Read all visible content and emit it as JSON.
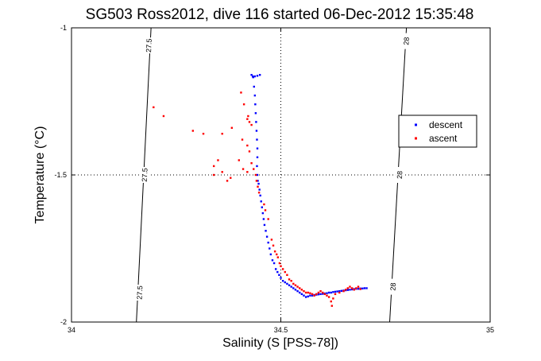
{
  "chart_data": {
    "type": "scatter",
    "title": "SG503 Ross2012, dive 116 started 06-Dec-2012 15:35:48",
    "xlabel": "Salinity (S [PSS-78])",
    "ylabel": "Temperature (°C)",
    "xlim": [
      34,
      35
    ],
    "ylim": [
      -2,
      -1
    ],
    "xticks": [
      {
        "value": 34,
        "label": "34"
      },
      {
        "value": 34.5,
        "label": "34.5"
      },
      {
        "value": 35,
        "label": "35"
      }
    ],
    "yticks": [
      {
        "value": -1,
        "label": "-1"
      },
      {
        "value": -1.5,
        "label": "-1.5"
      },
      {
        "value": -2,
        "label": "-2"
      }
    ],
    "grid": "dotted at 34.5 and -1.5",
    "legend_position": "right",
    "isopycnals": [
      {
        "label": "27.5",
        "points": [
          [
            34.19,
            -1.0
          ],
          [
            34.155,
            -2.0
          ]
        ],
        "label_positions": [
          [
            34.185,
            -1.06
          ],
          [
            34.175,
            -1.5
          ],
          [
            34.163,
            -1.9
          ]
        ]
      },
      {
        "label": "28",
        "points": [
          [
            34.8,
            -1.0
          ],
          [
            34.76,
            -2.0
          ]
        ],
        "label_positions": [
          [
            34.8,
            -1.045
          ],
          [
            34.784,
            -1.5
          ],
          [
            34.768,
            -1.88
          ]
        ]
      }
    ],
    "series": [
      {
        "name": "descent",
        "color": "#0000ff",
        "points": [
          [
            34.45,
            -1.16
          ],
          [
            34.444,
            -1.163
          ],
          [
            34.438,
            -1.165
          ],
          [
            34.433,
            -1.165
          ],
          [
            34.43,
            -1.16
          ],
          [
            34.434,
            -1.168
          ],
          [
            34.436,
            -1.2
          ],
          [
            34.438,
            -1.23
          ],
          [
            34.439,
            -1.26
          ],
          [
            34.44,
            -1.29
          ],
          [
            34.441,
            -1.32
          ],
          [
            34.442,
            -1.35
          ],
          [
            34.443,
            -1.38
          ],
          [
            34.444,
            -1.41
          ],
          [
            34.444,
            -1.44
          ],
          [
            34.443,
            -1.47
          ],
          [
            34.444,
            -1.5
          ],
          [
            34.445,
            -1.52
          ],
          [
            34.447,
            -1.53
          ],
          [
            34.449,
            -1.55
          ],
          [
            34.451,
            -1.57
          ],
          [
            34.453,
            -1.59
          ],
          [
            34.455,
            -1.61
          ],
          [
            34.457,
            -1.63
          ],
          [
            34.459,
            -1.65
          ],
          [
            34.461,
            -1.67
          ],
          [
            34.464,
            -1.69
          ],
          [
            34.467,
            -1.71
          ],
          [
            34.47,
            -1.73
          ],
          [
            34.473,
            -1.75
          ],
          [
            34.476,
            -1.77
          ],
          [
            34.48,
            -1.79
          ],
          [
            34.484,
            -1.8
          ],
          [
            34.488,
            -1.82
          ],
          [
            34.492,
            -1.83
          ],
          [
            34.496,
            -1.84
          ],
          [
            34.5,
            -1.85
          ],
          [
            34.505,
            -1.86
          ],
          [
            34.51,
            -1.865
          ],
          [
            34.515,
            -1.87
          ],
          [
            34.52,
            -1.875
          ],
          [
            34.525,
            -1.88
          ],
          [
            34.53,
            -1.885
          ],
          [
            34.535,
            -1.89
          ],
          [
            34.54,
            -1.895
          ],
          [
            34.545,
            -1.9
          ],
          [
            34.55,
            -1.905
          ],
          [
            34.555,
            -1.91
          ],
          [
            34.56,
            -1.915
          ],
          [
            34.565,
            -1.913
          ],
          [
            34.57,
            -1.91
          ],
          [
            34.575,
            -1.91
          ],
          [
            34.58,
            -1.908
          ],
          [
            34.585,
            -1.907
          ],
          [
            34.59,
            -1.906
          ],
          [
            34.595,
            -1.905
          ],
          [
            34.6,
            -1.904
          ],
          [
            34.605,
            -1.903
          ],
          [
            34.61,
            -1.902
          ],
          [
            34.615,
            -1.9
          ],
          [
            34.62,
            -1.9
          ],
          [
            34.625,
            -1.898
          ],
          [
            34.63,
            -1.897
          ],
          [
            34.635,
            -1.896
          ],
          [
            34.64,
            -1.895
          ],
          [
            34.645,
            -1.894
          ],
          [
            34.65,
            -1.893
          ],
          [
            34.655,
            -1.892
          ],
          [
            34.66,
            -1.891
          ],
          [
            34.665,
            -1.89
          ],
          [
            34.67,
            -1.889
          ],
          [
            34.675,
            -1.888
          ],
          [
            34.68,
            -1.887
          ],
          [
            34.685,
            -1.887
          ],
          [
            34.69,
            -1.886
          ],
          [
            34.695,
            -1.886
          ],
          [
            34.7,
            -1.885
          ],
          [
            34.705,
            -1.885
          ]
        ]
      },
      {
        "name": "ascent",
        "color": "#ff0000",
        "points": [
          [
            34.196,
            -1.27
          ],
          [
            34.22,
            -1.3
          ],
          [
            34.29,
            -1.35
          ],
          [
            34.315,
            -1.36
          ],
          [
            34.36,
            -1.36
          ],
          [
            34.383,
            -1.34
          ],
          [
            34.405,
            -1.22
          ],
          [
            34.412,
            -1.26
          ],
          [
            34.422,
            -1.3
          ],
          [
            34.42,
            -1.31
          ],
          [
            34.425,
            -1.32
          ],
          [
            34.43,
            -1.33
          ],
          [
            34.408,
            -1.38
          ],
          [
            34.42,
            -1.4
          ],
          [
            34.425,
            -1.42
          ],
          [
            34.35,
            -1.45
          ],
          [
            34.34,
            -1.5
          ],
          [
            34.34,
            -1.47
          ],
          [
            34.36,
            -1.49
          ],
          [
            34.372,
            -1.52
          ],
          [
            34.38,
            -1.51
          ],
          [
            34.4,
            -1.45
          ],
          [
            34.41,
            -1.48
          ],
          [
            34.42,
            -1.49
          ],
          [
            34.43,
            -1.46
          ],
          [
            34.435,
            -1.48
          ],
          [
            34.44,
            -1.5
          ],
          [
            34.442,
            -1.52
          ],
          [
            34.445,
            -1.54
          ],
          [
            34.448,
            -1.56
          ],
          [
            34.46,
            -1.6
          ],
          [
            34.463,
            -1.62
          ],
          [
            34.47,
            -1.65
          ],
          [
            34.478,
            -1.72
          ],
          [
            34.482,
            -1.74
          ],
          [
            34.486,
            -1.76
          ],
          [
            34.49,
            -1.77
          ],
          [
            34.493,
            -1.78
          ],
          [
            34.497,
            -1.8
          ],
          [
            34.5,
            -1.81
          ],
          [
            34.505,
            -1.82
          ],
          [
            34.51,
            -1.83
          ],
          [
            34.515,
            -1.84
          ],
          [
            34.52,
            -1.855
          ],
          [
            34.525,
            -1.86
          ],
          [
            34.53,
            -1.87
          ],
          [
            34.535,
            -1.875
          ],
          [
            34.54,
            -1.88
          ],
          [
            34.545,
            -1.885
          ],
          [
            34.55,
            -1.89
          ],
          [
            34.555,
            -1.895
          ],
          [
            34.56,
            -1.9
          ],
          [
            34.565,
            -1.9
          ],
          [
            34.57,
            -1.902
          ],
          [
            34.575,
            -1.905
          ],
          [
            34.58,
            -1.91
          ],
          [
            34.585,
            -1.905
          ],
          [
            34.59,
            -1.9
          ],
          [
            34.595,
            -1.895
          ],
          [
            34.6,
            -1.9
          ],
          [
            34.605,
            -1.905
          ],
          [
            34.61,
            -1.91
          ],
          [
            34.615,
            -1.915
          ],
          [
            34.62,
            -1.93
          ],
          [
            34.622,
            -1.945
          ],
          [
            34.625,
            -1.92
          ],
          [
            34.63,
            -1.905
          ],
          [
            34.64,
            -1.9
          ],
          [
            34.65,
            -1.895
          ],
          [
            34.655,
            -1.89
          ],
          [
            34.66,
            -1.885
          ],
          [
            34.665,
            -1.88
          ],
          [
            34.67,
            -1.885
          ],
          [
            34.675,
            -1.89
          ],
          [
            34.68,
            -1.885
          ],
          [
            34.685,
            -1.88
          ],
          [
            34.69,
            -1.888
          ]
        ]
      }
    ]
  }
}
